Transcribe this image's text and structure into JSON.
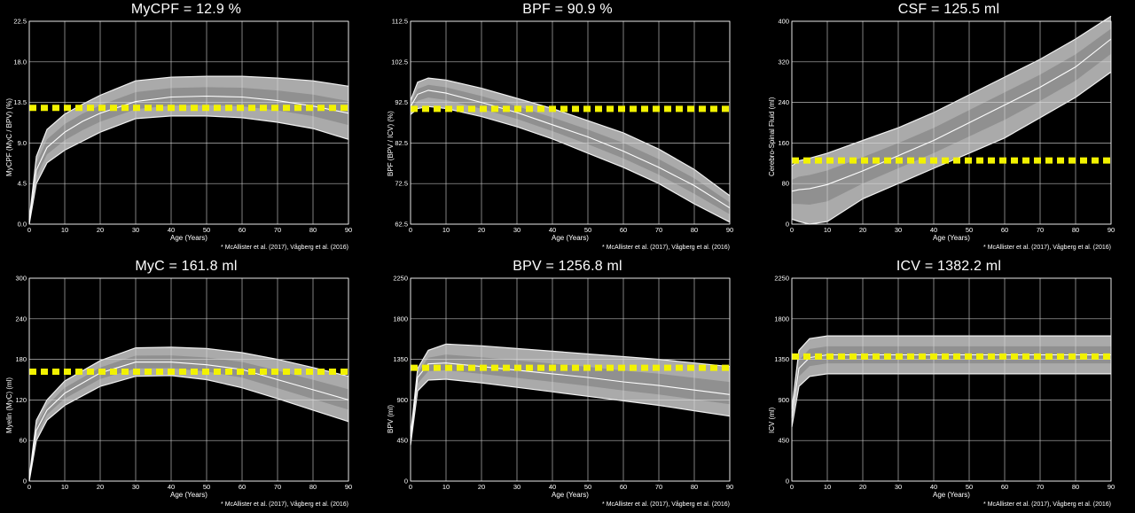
{
  "chart_data": [
    {
      "type": "line",
      "title": "MyCPF = 12.9 %",
      "xlabel": "Age (Years)",
      "ylabel": "MyCPF (MyC / BPV) (%)",
      "xlim": [
        0,
        90
      ],
      "ylim": [
        0.0,
        22.5
      ],
      "xticks": [
        "0",
        "10",
        "20",
        "30",
        "40",
        "50",
        "60",
        "70",
        "80",
        "90"
      ],
      "yticks": [
        "0.0",
        "4.5",
        "9.0",
        "13.5",
        "18.0",
        "22.5"
      ],
      "grid": true,
      "credit": "* McAllister et al. (2017), Vågberg et al. (2016)",
      "reference_value": 12.9,
      "x": [
        0,
        2,
        5,
        10,
        15,
        20,
        30,
        40,
        50,
        60,
        70,
        80,
        90
      ],
      "series": [
        {
          "role": "upper",
          "values": [
            0.5,
            7.5,
            10.5,
            12.2,
            13.3,
            14.3,
            15.9,
            16.3,
            16.4,
            16.4,
            16.2,
            15.9,
            15.3
          ]
        },
        {
          "role": "median",
          "values": [
            0.2,
            6.0,
            8.5,
            10.2,
            11.4,
            12.3,
            13.6,
            14.1,
            14.2,
            14.1,
            13.7,
            13.1,
            12.3
          ]
        },
        {
          "role": "lower",
          "values": [
            0.0,
            4.5,
            6.8,
            8.2,
            9.2,
            10.2,
            11.7,
            12.0,
            12.0,
            11.8,
            11.3,
            10.6,
            9.4
          ]
        }
      ]
    },
    {
      "type": "line",
      "title": "BPF = 90.9 %",
      "xlabel": "Age (Years)",
      "ylabel": "BPF (BPV / ICV) (%)",
      "xlim": [
        0,
        90
      ],
      "ylim": [
        62.5,
        112.5
      ],
      "xticks": [
        "0",
        "10",
        "20",
        "30",
        "40",
        "50",
        "60",
        "70",
        "80",
        "90"
      ],
      "yticks": [
        "62.5",
        "72.5",
        "82.5",
        "92.5",
        "102.5",
        "112.5"
      ],
      "grid": true,
      "credit": "* McAllister et al. (2017), Vågberg et al. (2016)",
      "reference_value": 90.9,
      "x": [
        0,
        2,
        5,
        10,
        20,
        30,
        40,
        50,
        60,
        70,
        80,
        90
      ],
      "series": [
        {
          "role": "upper",
          "values": [
            93.0,
            97.5,
            98.5,
            98.0,
            96.0,
            93.5,
            91.0,
            88.0,
            85.0,
            81.0,
            76.0,
            69.5
          ]
        },
        {
          "role": "median",
          "values": [
            91.5,
            94.5,
            95.5,
            94.8,
            92.5,
            90.0,
            87.0,
            84.0,
            80.5,
            76.5,
            72.0,
            66.5
          ]
        },
        {
          "role": "lower",
          "values": [
            89.5,
            91.0,
            91.5,
            91.0,
            89.0,
            86.5,
            83.5,
            80.0,
            76.5,
            72.5,
            67.5,
            63.0
          ]
        }
      ]
    },
    {
      "type": "line",
      "title": "CSF = 125.5 ml",
      "xlabel": "Age (Years)",
      "ylabel": "Cerebro-Spinal Fluid (ml)",
      "xlim": [
        0,
        90
      ],
      "ylim": [
        0,
        400
      ],
      "xticks": [
        "0",
        "10",
        "20",
        "30",
        "40",
        "50",
        "60",
        "70",
        "80",
        "90"
      ],
      "yticks": [
        "0",
        "80",
        "160",
        "240",
        "320",
        "400"
      ],
      "grid": true,
      "credit": "* McAllister et al. (2017), Vågberg et al. (2016)",
      "reference_value": 125.5,
      "x": [
        0,
        2,
        5,
        10,
        20,
        30,
        40,
        50,
        60,
        70,
        80,
        90
      ],
      "series": [
        {
          "role": "upper",
          "values": [
            115,
            125,
            130,
            140,
            165,
            190,
            220,
            255,
            290,
            325,
            365,
            410
          ]
        },
        {
          "role": "median",
          "values": [
            65,
            68,
            70,
            78,
            105,
            135,
            165,
            200,
            235,
            270,
            310,
            365
          ]
        },
        {
          "role": "lower",
          "values": [
            10,
            5,
            0,
            5,
            50,
            80,
            110,
            140,
            170,
            210,
            250,
            300
          ]
        }
      ]
    },
    {
      "type": "line",
      "title": "MyC = 161.8 ml",
      "xlabel": "Age (Years)",
      "ylabel": "Myelin (MyC) (ml)",
      "xlim": [
        0,
        90
      ],
      "ylim": [
        0,
        300
      ],
      "xticks": [
        "0",
        "10",
        "20",
        "30",
        "40",
        "50",
        "60",
        "70",
        "80",
        "90"
      ],
      "yticks": [
        "0",
        "60",
        "120",
        "180",
        "240",
        "300"
      ],
      "grid": true,
      "credit": "* McAllister et al. (2017), Vågberg et al. (2016)",
      "reference_value": 161.8,
      "x": [
        0,
        2,
        5,
        10,
        20,
        30,
        40,
        50,
        60,
        70,
        80,
        90
      ],
      "series": [
        {
          "role": "upper",
          "values": [
            5,
            90,
            120,
            148,
            178,
            197,
            198,
            196,
            190,
            180,
            168,
            155
          ]
        },
        {
          "role": "median",
          "values": [
            2,
            75,
            105,
            130,
            160,
            176,
            176,
            172,
            165,
            150,
            135,
            120
          ]
        },
        {
          "role": "lower",
          "values": [
            0,
            60,
            90,
            112,
            140,
            155,
            156,
            150,
            138,
            122,
            105,
            88
          ]
        }
      ]
    },
    {
      "type": "line",
      "title": "BPV = 1256.8 ml",
      "xlabel": "Age (Years)",
      "ylabel": "BPV (ml)",
      "xlim": [
        0,
        90
      ],
      "ylim": [
        0,
        2250
      ],
      "xticks": [
        "0",
        "10",
        "20",
        "30",
        "40",
        "50",
        "60",
        "70",
        "80",
        "90"
      ],
      "yticks": [
        "0",
        "450",
        "900",
        "1350",
        "1800",
        "2250"
      ],
      "grid": true,
      "credit": "* McAllister et al. (2017), Vågberg et al. (2016)",
      "reference_value": 1256.8,
      "x": [
        0,
        2,
        5,
        10,
        20,
        30,
        40,
        50,
        60,
        70,
        80,
        90
      ],
      "series": [
        {
          "role": "upper",
          "values": [
            500,
            1250,
            1450,
            1520,
            1500,
            1470,
            1440,
            1410,
            1380,
            1350,
            1310,
            1270
          ]
        },
        {
          "role": "median",
          "values": [
            450,
            1150,
            1300,
            1310,
            1270,
            1230,
            1190,
            1150,
            1100,
            1060,
            1010,
            960
          ]
        },
        {
          "role": "lower",
          "values": [
            400,
            1000,
            1120,
            1130,
            1090,
            1040,
            990,
            940,
            890,
            840,
            780,
            720
          ]
        }
      ]
    },
    {
      "type": "line",
      "title": "ICV = 1382.2 ml",
      "xlabel": "Age (Years)",
      "ylabel": "ICV (ml)",
      "xlim": [
        0,
        90
      ],
      "ylim": [
        0,
        2250
      ],
      "xticks": [
        "0",
        "10",
        "20",
        "30",
        "40",
        "50",
        "60",
        "70",
        "80",
        "90"
      ],
      "yticks": [
        "0",
        "450",
        "900",
        "1350",
        "1800",
        "2250"
      ],
      "grid": true,
      "credit": "* McAllister et al. (2017), Vågberg et al. (2016)",
      "reference_value": 1382.2,
      "x": [
        0,
        2,
        5,
        10,
        20,
        30,
        40,
        50,
        60,
        70,
        80,
        90
      ],
      "series": [
        {
          "role": "upper",
          "values": [
            800,
            1450,
            1580,
            1610,
            1610,
            1610,
            1610,
            1610,
            1610,
            1610,
            1610,
            1610
          ]
        },
        {
          "role": "median",
          "values": [
            700,
            1250,
            1370,
            1400,
            1400,
            1400,
            1400,
            1400,
            1400,
            1400,
            1400,
            1400
          ]
        },
        {
          "role": "lower",
          "values": [
            600,
            1050,
            1160,
            1190,
            1190,
            1190,
            1190,
            1190,
            1190,
            1190,
            1190,
            1190
          ]
        }
      ]
    }
  ],
  "colors": {
    "background": "#000000",
    "plot_area": "#000000",
    "grid": "#d8d8d8",
    "band_fill": "#b8b8b8",
    "band_edge": "#f0f0f0",
    "median": "#ffffff",
    "reference_line": "#f2f200",
    "text": "#ffffff"
  }
}
